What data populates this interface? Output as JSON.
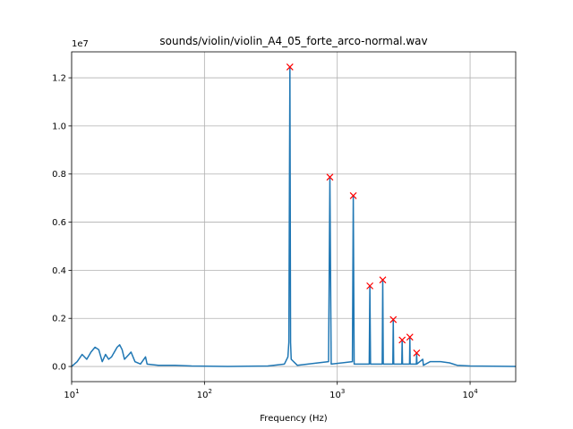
{
  "chart_data": {
    "type": "line",
    "title": "sounds/violin/violin_A4_05_forte_arco-normal.wav",
    "xlabel": "Frequency (Hz)",
    "y_offset_label": "1e7",
    "xscale": "log",
    "grid": true,
    "xlim": [
      10,
      22050
    ],
    "ylim": [
      -0.063,
      1.308
    ],
    "xticks": [
      {
        "value": 10,
        "label": "10",
        "exponent": "1"
      },
      {
        "value": 100,
        "label": "10",
        "exponent": "2"
      },
      {
        "value": 1000,
        "label": "10",
        "exponent": "3"
      },
      {
        "value": 10000,
        "label": "10",
        "exponent": "4"
      }
    ],
    "yticks": [
      {
        "value": 0,
        "label": "0.0"
      },
      0.2,
      0.4,
      0.6,
      0.8,
      {
        "value": 1,
        "label": "1.0"
      },
      1.2
    ],
    "series": [
      {
        "color": "#1f77b4",
        "x": [
          10,
          11,
          12,
          13,
          14,
          15,
          16,
          17,
          18,
          19,
          20,
          22,
          23,
          24,
          25,
          27,
          28,
          30,
          33,
          36,
          37,
          45,
          60,
          80,
          150,
          300,
          400,
          425,
          432,
          440,
          445,
          450,
          500,
          860,
          880,
          900,
          1300,
          1320,
          1340,
          1740,
          1760,
          1780,
          2180,
          2200,
          2220,
          2620,
          2640,
          2660,
          3060,
          3080,
          3100,
          3500,
          3520,
          3540,
          3940,
          3960,
          3980,
          4400,
          4450,
          5000,
          6000,
          7000,
          8000,
          10000,
          22050
        ],
        "values": [
          0.0,
          0.02,
          0.05,
          0.03,
          0.06,
          0.08,
          0.07,
          0.02,
          0.05,
          0.03,
          0.04,
          0.08,
          0.09,
          0.07,
          0.03,
          0.05,
          0.06,
          0.02,
          0.01,
          0.04,
          0.01,
          0.005,
          0.005,
          0.002,
          0.0,
          0.002,
          0.01,
          0.04,
          0.1,
          1.245,
          0.1,
          0.03,
          0.005,
          0.02,
          0.787,
          0.01,
          0.02,
          0.71,
          0.01,
          0.01,
          0.335,
          0.01,
          0.01,
          0.36,
          0.01,
          0.01,
          0.195,
          0.01,
          0.01,
          0.11,
          0.01,
          0.01,
          0.122,
          0.01,
          0.01,
          0.056,
          0.01,
          0.03,
          0.005,
          0.02,
          0.02,
          0.015,
          0.005,
          0.002,
          0.0
        ]
      },
      {
        "color": "red",
        "marker": "x",
        "x": [
          440,
          880,
          1320,
          1760,
          2200,
          2640,
          3080,
          3520,
          3960
        ],
        "values": [
          1.245,
          0.787,
          0.71,
          0.335,
          0.36,
          0.195,
          0.11,
          0.122,
          0.056
        ]
      }
    ]
  }
}
